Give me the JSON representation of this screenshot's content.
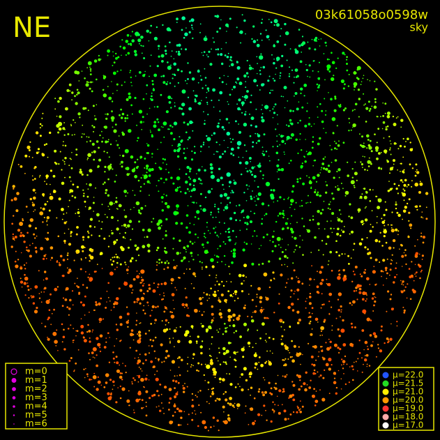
{
  "corner_label": "NE",
  "header": {
    "id": "03k61058o0598w",
    "subtitle": "sky"
  },
  "magnitude_legend": [
    "m=0",
    "m=1",
    "m=2",
    "m=3",
    "m=4",
    "m=5",
    "m=6"
  ],
  "mu_legend": [
    "μ=22.0",
    "μ=21.5",
    "μ=21.0",
    "μ=20.0",
    "μ=19.0",
    "μ=18.0",
    "μ=17.0"
  ]
}
